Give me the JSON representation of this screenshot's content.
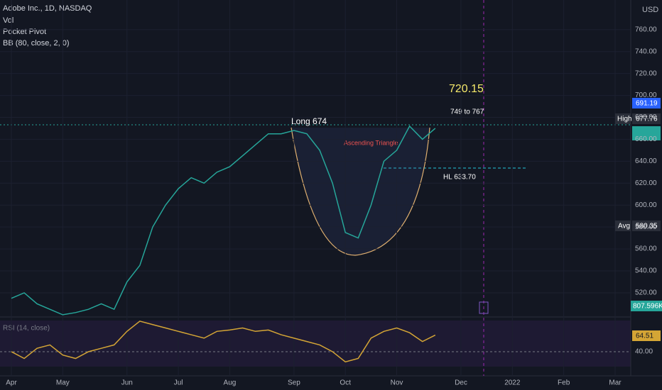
{
  "header": {
    "symbol": "Adobe Inc., 1D, NASDAQ",
    "indicators": [
      "Vol",
      "Pocket Pivot",
      "BB (80, close, 2, 0)"
    ],
    "currency": "USD"
  },
  "annotations": {
    "target": "720.15",
    "range": "749 to 767",
    "long": "Long  674",
    "pattern": "Ascending Triangle",
    "hl": "HL 633.70",
    "rsi_title": "RSI (14, close)"
  },
  "badges": {
    "bb_upper": "691.19",
    "high_label": "High",
    "high": "677.76",
    "avg_label": "Avg",
    "avg": "580.35",
    "volume": "807.596K",
    "rsi": "64.51"
  },
  "chart_data": [
    {
      "type": "line",
      "categories": [
        "Apr",
        null,
        null,
        null,
        "May",
        null,
        null,
        null,
        null,
        "Jun",
        null,
        null,
        null,
        "Jul",
        null,
        null,
        null,
        "Aug",
        null,
        null,
        null,
        null,
        "Sep",
        null,
        null,
        null,
        "Oct",
        null,
        null,
        null,
        "Nov",
        null,
        null,
        null,
        null,
        "Dec",
        null,
        null,
        null,
        "2022",
        null,
        null,
        null,
        "Feb",
        null,
        null,
        null,
        "Mar"
      ],
      "values": [
        515,
        520,
        510,
        505,
        500,
        502,
        505,
        510,
        505,
        530,
        545,
        580,
        600,
        615,
        625,
        620,
        630,
        635,
        645,
        655,
        665,
        665,
        668,
        665,
        650,
        620,
        575,
        570,
        600,
        640,
        650,
        672,
        660,
        670,
        null,
        null,
        null,
        null,
        null,
        null,
        null,
        null,
        null,
        null,
        null,
        null,
        null,
        null
      ],
      "color": "#26a69a",
      "ylim": [
        498,
        787
      ],
      "yticks": [
        {
          "value": 520,
          "label": "520.00"
        },
        {
          "value": 540,
          "label": "540.00"
        },
        {
          "value": 560,
          "label": "560.00"
        },
        {
          "value": 580,
          "label": "580.00"
        },
        {
          "value": 600,
          "label": "600.00"
        },
        {
          "value": 620,
          "label": "620.00"
        },
        {
          "value": 640,
          "label": "640.00"
        },
        {
          "value": 660,
          "label": "660.00"
        },
        {
          "value": 680,
          "label": "680.00"
        },
        {
          "value": 700,
          "label": "700.00"
        },
        {
          "value": 720,
          "label": "720.00"
        },
        {
          "value": 740,
          "label": "740.00"
        },
        {
          "value": 760,
          "label": "760.00"
        }
      ],
      "grid": true
    },
    {
      "type": "line",
      "values": [
        40,
        30,
        45,
        50,
        35,
        30,
        40,
        45,
        50,
        70,
        85,
        80,
        75,
        70,
        65,
        60,
        70,
        72,
        75,
        70,
        72,
        65,
        60,
        55,
        50,
        40,
        25,
        30,
        60,
        70,
        75,
        68,
        55,
        64.51,
        null,
        null,
        null,
        null,
        null,
        null,
        null,
        null,
        null,
        null,
        null,
        null,
        null,
        null
      ],
      "color": "#d4a535",
      "ylim": [
        18,
        86
      ],
      "yticks": [
        {
          "value": 40,
          "label": "40.00"
        }
      ],
      "grid": true
    }
  ]
}
